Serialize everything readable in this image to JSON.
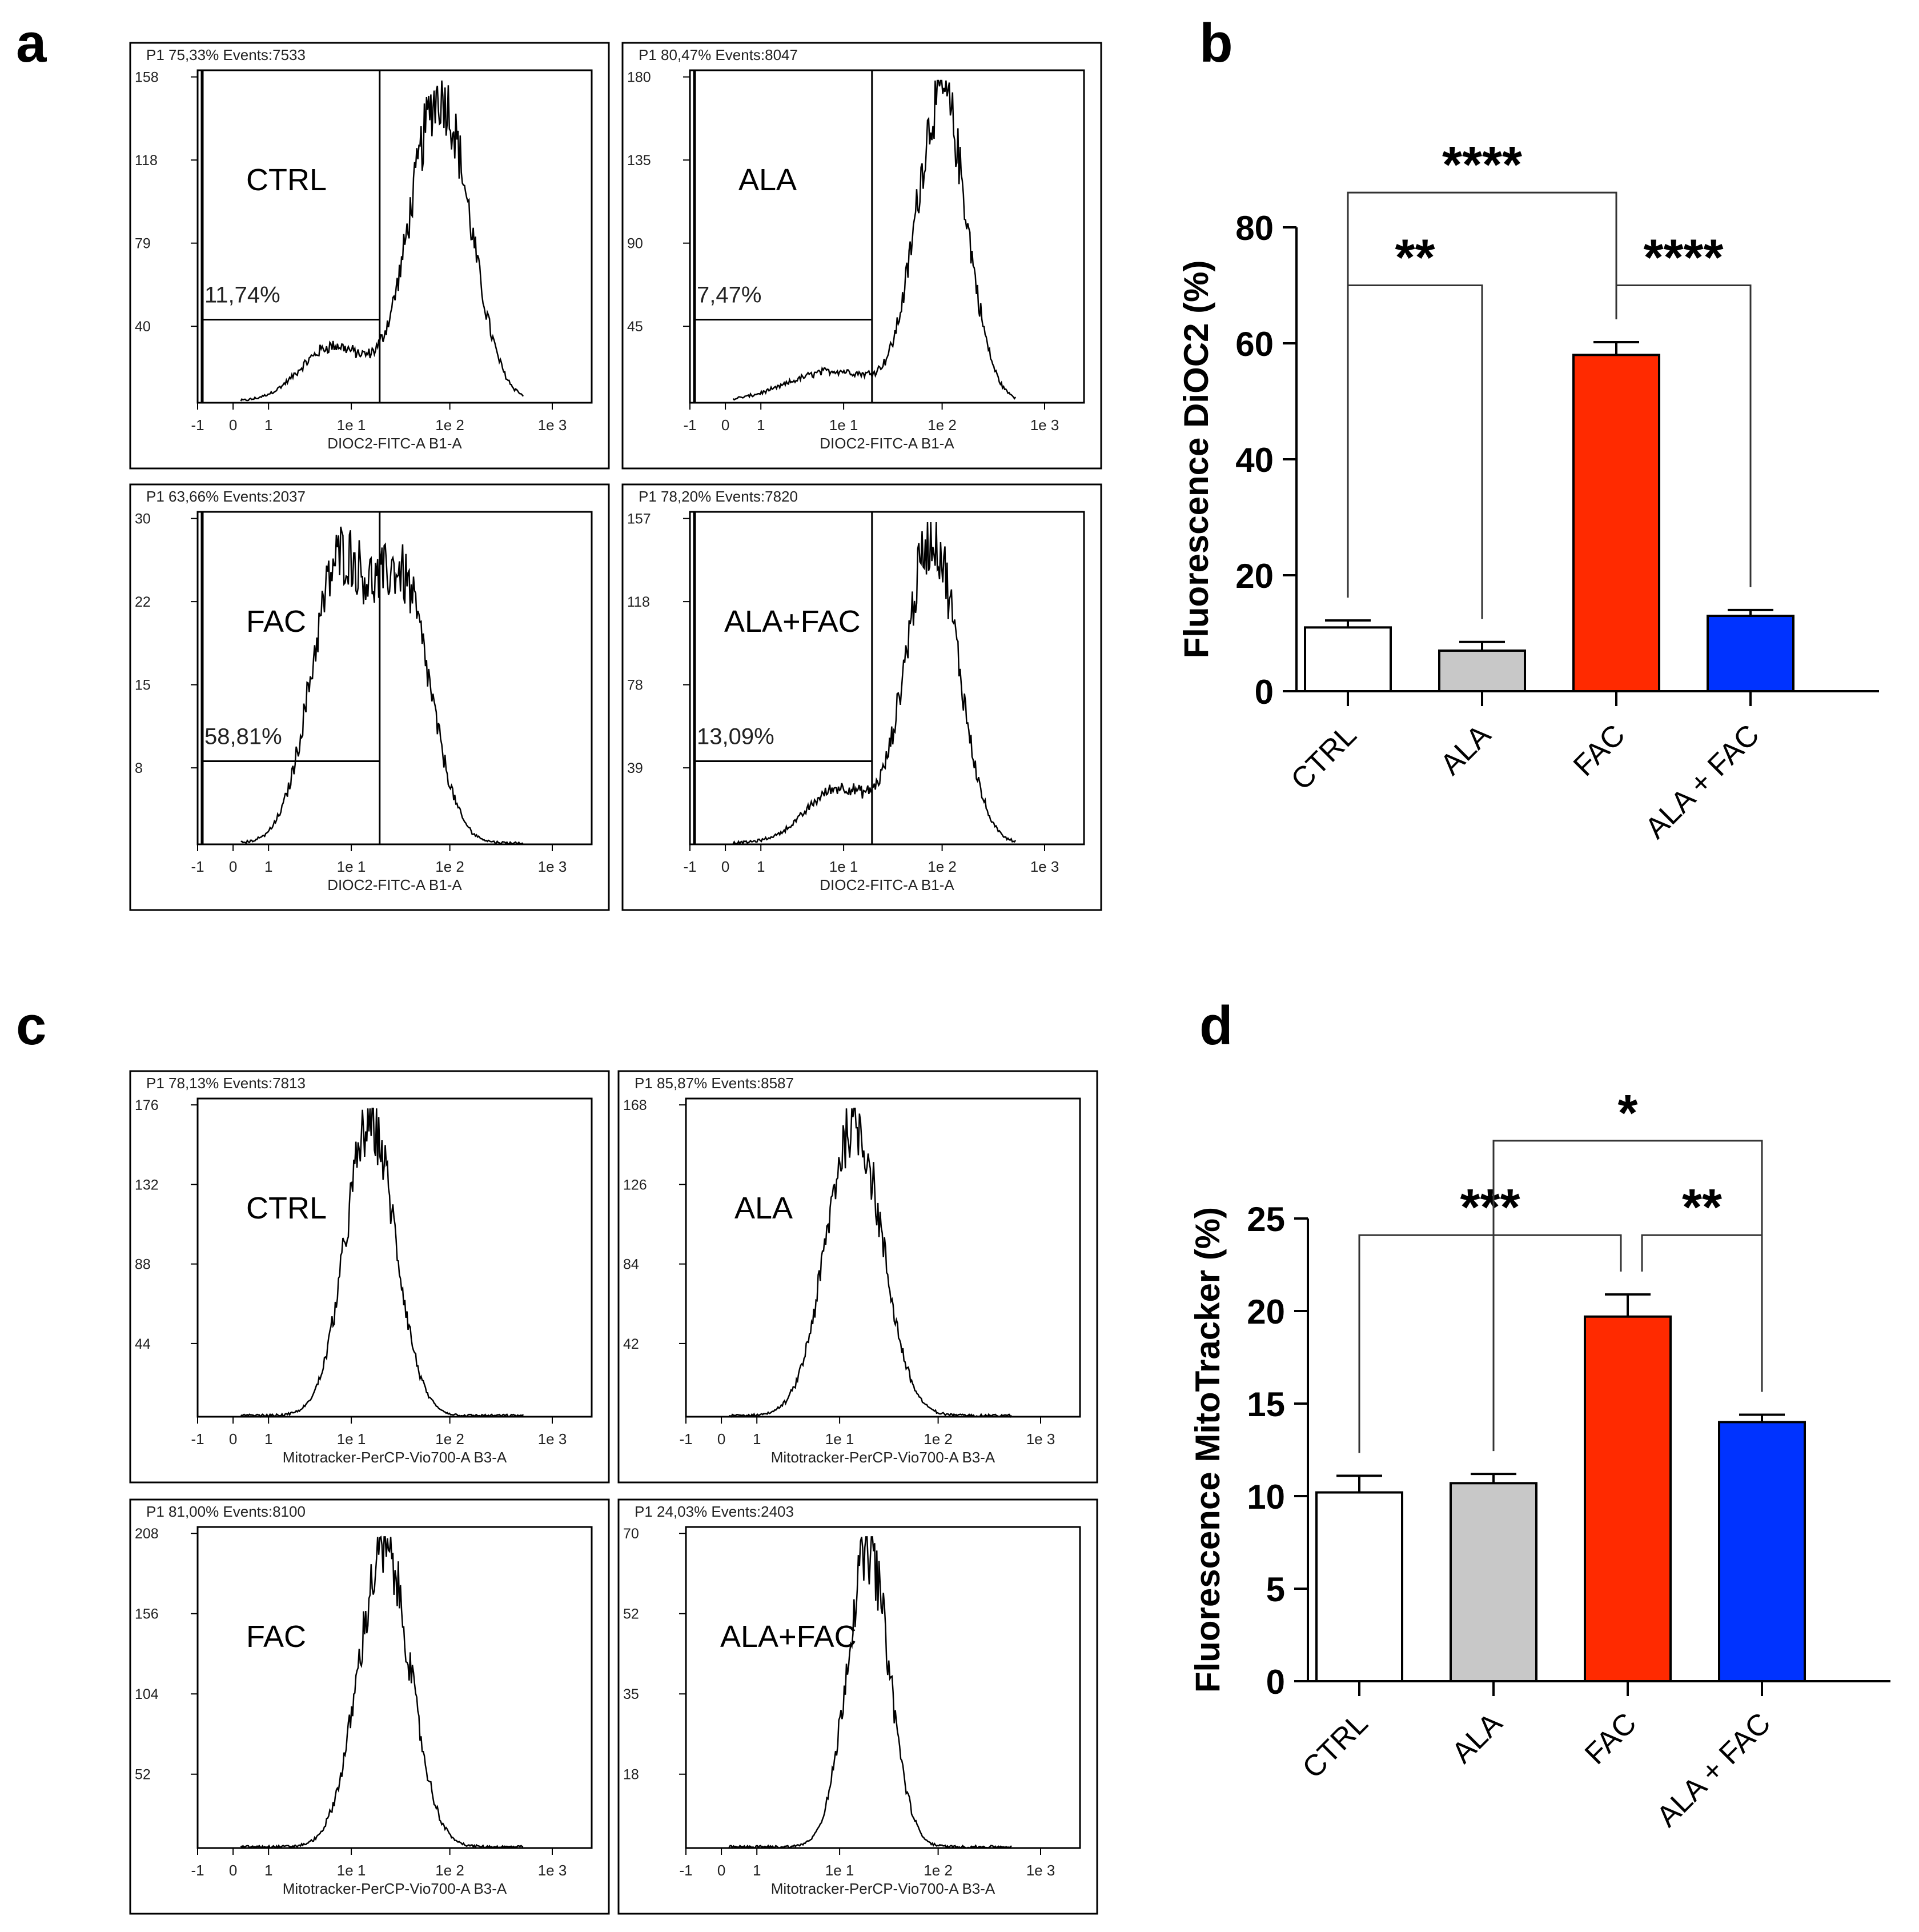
{
  "panel_letters": [
    "a",
    "b",
    "c",
    "d"
  ],
  "flow_histograms": [
    {
      "panel": "a",
      "group": "CTRL",
      "header": "P1  75,33% Events:7533",
      "gate_percent": "11,74%",
      "y_ticks": [
        "158",
        "118",
        "79",
        "40"
      ],
      "x_ticks": [
        "-1",
        "0",
        "1",
        "1e 1",
        "1e 2",
        "1e 3"
      ],
      "x_label": "DIOC2-FITC-A B1-A",
      "gate_right_log": 1.2,
      "gate_height": 0.25,
      "peaks": [
        {
          "mu": 1.85,
          "sigma": 0.32,
          "amp": 1.0
        },
        {
          "mu": 0.7,
          "sigma": 0.35,
          "amp": 0.18
        }
      ]
    },
    {
      "panel": "a",
      "group": "ALA",
      "header": "P1  80,47% Events:8047",
      "gate_percent": "7,47%",
      "y_ticks": [
        "180",
        "135",
        "90",
        "45"
      ],
      "x_ticks": [
        "-1",
        "0",
        "1",
        "1e 1",
        "1e 2",
        "1e 3"
      ],
      "x_label": "DIOC2-FITC-A B1-A",
      "gate_right_log": 1.2,
      "gate_height": 0.25,
      "peaks": [
        {
          "mu": 1.95,
          "sigma": 0.27,
          "amp": 1.0
        },
        {
          "mu": 0.8,
          "sigma": 0.5,
          "amp": 0.1
        }
      ]
    },
    {
      "panel": "a",
      "group": "FAC",
      "header": "P1  63,66% Events:2037",
      "gate_percent": "58,81%",
      "y_ticks": [
        "30",
        "22",
        "15",
        "8"
      ],
      "x_ticks": [
        "-1",
        "0",
        "1",
        "1e 1",
        "1e 2",
        "1e 3"
      ],
      "x_label": "DIOC2-FITC-A B1-A",
      "gate_right_log": 1.2,
      "gate_height": 0.25,
      "peaks": [
        {
          "mu": 0.75,
          "sigma": 0.3,
          "amp": 0.88
        },
        {
          "mu": 1.45,
          "sigma": 0.3,
          "amp": 0.82
        }
      ]
    },
    {
      "panel": "a",
      "group": "ALA+FAC",
      "header": "P1  78,20% Events:7820",
      "gate_percent": "13,09%",
      "y_ticks": [
        "157",
        "118",
        "78",
        "39"
      ],
      "x_ticks": [
        "-1",
        "0",
        "1",
        "1e 1",
        "1e 2",
        "1e 3"
      ],
      "x_label": "DIOC2-FITC-A B1-A",
      "gate_right_log": 1.2,
      "gate_height": 0.25,
      "peaks": [
        {
          "mu": 1.85,
          "sigma": 0.28,
          "amp": 1.0
        },
        {
          "mu": 0.85,
          "sigma": 0.35,
          "amp": 0.18
        }
      ]
    },
    {
      "panel": "c",
      "group": "CTRL",
      "header": "P1  78,13% Events:7813",
      "y_ticks": [
        "176",
        "132",
        "88",
        "44"
      ],
      "x_ticks": [
        "-1",
        "0",
        "1",
        "1e 1",
        "1e 2",
        "1e 3"
      ],
      "x_label": "Mitotracker-PerCP-Vio700-A B3-A",
      "peaks": [
        {
          "mu": 1.1,
          "sigma": 0.27,
          "amp": 1.0
        }
      ]
    },
    {
      "panel": "c",
      "group": "ALA",
      "header": "P1  85,87% Events:8587",
      "y_ticks": [
        "168",
        "126",
        "84",
        "42"
      ],
      "x_ticks": [
        "-1",
        "0",
        "1",
        "1e 1",
        "1e 2",
        "1e 3"
      ],
      "x_label": "Mitotracker-PerCP-Vio700-A B3-A",
      "peaks": [
        {
          "mu": 1.05,
          "sigma": 0.3,
          "amp": 1.0
        }
      ]
    },
    {
      "panel": "c",
      "group": "FAC",
      "header": "P1  81,00% Events:8100",
      "y_ticks": [
        "208",
        "156",
        "104",
        "52"
      ],
      "x_ticks": [
        "-1",
        "0",
        "1",
        "1e 1",
        "1e 2",
        "1e 3"
      ],
      "x_label": "Mitotracker-PerCP-Vio700-A B3-A",
      "peaks": [
        {
          "mu": 1.25,
          "sigma": 0.28,
          "amp": 1.0
        }
      ]
    },
    {
      "panel": "c",
      "group": "ALA+FAC",
      "header": "P1  24,03% Events:2403",
      "y_ticks": [
        "70",
        "52",
        "35",
        "18"
      ],
      "x_ticks": [
        "-1",
        "0",
        "1",
        "1e 1",
        "1e 2",
        "1e 3"
      ],
      "x_label": "Mitotracker-PerCP-Vio700-A B3-A",
      "peaks": [
        {
          "mu": 1.2,
          "sigma": 0.23,
          "amp": 1.0
        }
      ]
    }
  ],
  "chart_data": [
    {
      "panel": "b",
      "type": "bar",
      "categories": [
        "CTRL",
        "ALA",
        "FAC",
        "ALA + FAC"
      ],
      "values": [
        11,
        7,
        58,
        13
      ],
      "errors": [
        1.2,
        1.5,
        2.2,
        1.0
      ],
      "colors": [
        "#ffffff",
        "#c8c8c8",
        "#ff2a00",
        "#0033ff"
      ],
      "ylabel": "Fluorescence DiOC2 (%)",
      "ylim": [
        0,
        80
      ],
      "yticks": [
        0,
        20,
        40,
        60,
        80
      ],
      "significance": [
        {
          "from": 0,
          "to": 1,
          "label": "**",
          "y": 70
        },
        {
          "from": 0,
          "to": 2,
          "label": "****",
          "y": 86
        },
        {
          "from": 2,
          "to": 3,
          "label": "****",
          "y": 70
        }
      ]
    },
    {
      "panel": "d",
      "type": "bar",
      "categories": [
        "CTRL",
        "ALA",
        "FAC",
        "ALA + FAC"
      ],
      "values": [
        10.2,
        10.7,
        19.7,
        14
      ],
      "errors": [
        0.9,
        0.5,
        1.2,
        0.4
      ],
      "colors": [
        "#ffffff",
        "#c8c8c8",
        "#ff2a00",
        "#0033ff"
      ],
      "ylabel": "Fluorescence MitoTracker (%)",
      "ylim": [
        0,
        25
      ],
      "yticks": [
        0,
        5,
        10,
        15,
        20,
        25
      ],
      "significance": [
        {
          "from": 0,
          "to": 2,
          "label": "***",
          "y": 24.1
        },
        {
          "from": 2,
          "to": 3,
          "label": "**",
          "y": 24.1
        },
        {
          "from": 1,
          "to": 3,
          "label": "*",
          "y": 29.2
        }
      ]
    }
  ]
}
